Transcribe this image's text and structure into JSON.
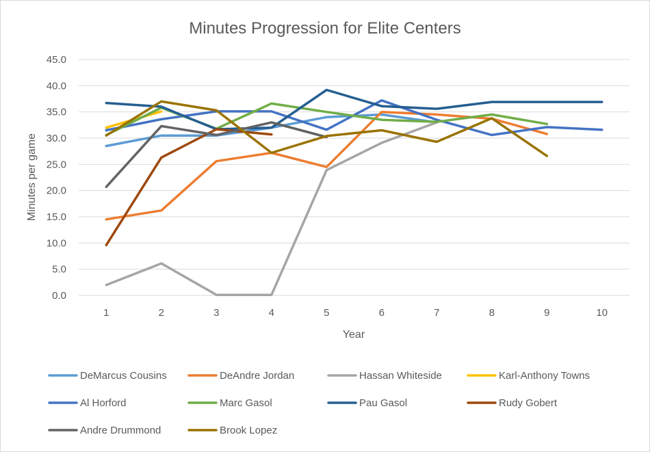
{
  "chart_data": {
    "type": "line",
    "title": "Minutes Progression for Elite Centers",
    "xlabel": "Year",
    "ylabel": "Minutes per game",
    "categories": [
      "1",
      "2",
      "3",
      "4",
      "5",
      "6",
      "7",
      "8",
      "9",
      "10"
    ],
    "ylim": [
      0,
      45
    ],
    "y_ticks": [
      "0.0",
      "5.0",
      "10.0",
      "15.0",
      "20.0",
      "25.0",
      "30.0",
      "35.0",
      "40.0",
      "45.0"
    ],
    "grid": true,
    "legend_position": "bottom",
    "series": [
      {
        "name": "DeMarcus Cousins",
        "color": "#5B9BD5",
        "values": [
          28.5,
          30.5,
          30.5,
          32.0,
          34.0,
          34.5,
          33.0,
          null,
          null,
          null
        ]
      },
      {
        "name": "DeAndre Jordan",
        "color": "#ED7D31",
        "values": [
          14.5,
          16.2,
          25.6,
          27.2,
          24.5,
          35.0,
          34.5,
          33.7,
          30.8,
          null
        ]
      },
      {
        "name": "Hassan Whiteside",
        "color": "#A5A5A5",
        "values": [
          2.0,
          6.1,
          0.1,
          0.1,
          23.9,
          29.1,
          33.0,
          null,
          null,
          null
        ]
      },
      {
        "name": "Karl-Anthony Towns",
        "color": "#FFC000",
        "values": [
          32.0,
          35.1,
          null,
          null,
          null,
          null,
          null,
          null,
          null,
          null
        ]
      },
      {
        "name": "Al Horford",
        "color": "#4472C4",
        "values": [
          31.5,
          33.6,
          35.1,
          35.1,
          31.6,
          37.2,
          33.5,
          30.6,
          32.1,
          31.6
        ]
      },
      {
        "name": "Marc Gasol",
        "color": "#70AD47",
        "values": [
          30.6,
          35.8,
          31.8,
          36.6,
          35.0,
          33.5,
          33.1,
          34.5,
          32.7,
          null
        ]
      },
      {
        "name": "Pau Gasol",
        "color": "#255E91",
        "values": [
          36.7,
          36.0,
          31.7,
          32.0,
          39.2,
          36.1,
          35.6,
          36.9,
          36.9,
          36.9
        ]
      },
      {
        "name": "Rudy Gobert",
        "color": "#9E480E",
        "values": [
          9.6,
          26.3,
          31.7,
          30.7,
          null,
          null,
          null,
          null,
          null,
          null
        ]
      },
      {
        "name": "Andre Drummond",
        "color": "#636363",
        "values": [
          20.7,
          32.3,
          30.6,
          33.0,
          30.2,
          null,
          null,
          null,
          null,
          null
        ]
      },
      {
        "name": "Brook Lopez",
        "color": "#997300",
        "values": [
          30.5,
          37.0,
          35.3,
          27.2,
          30.4,
          31.5,
          29.3,
          33.8,
          26.6,
          null
        ]
      }
    ]
  }
}
